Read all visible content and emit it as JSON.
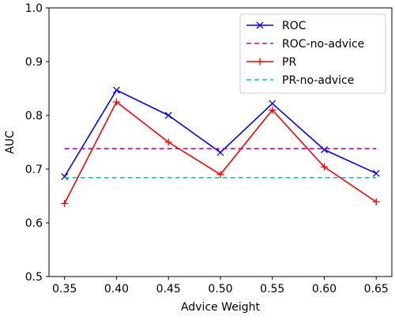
{
  "chart_data": {
    "type": "line",
    "xlabel": "Advice Weight",
    "ylabel": "AUC",
    "xlim": [
      0.335,
      0.665
    ],
    "ylim": [
      0.5,
      1.0
    ],
    "x_ticks": [
      "0.35",
      "0.40",
      "0.45",
      "0.50",
      "0.55",
      "0.60",
      "0.65"
    ],
    "y_ticks": [
      "0.5",
      "0.6",
      "0.7",
      "0.8",
      "0.9",
      "1.0"
    ],
    "x_tick_values": [
      0.35,
      0.4,
      0.45,
      0.5,
      0.55,
      0.6,
      0.65
    ],
    "y_tick_values": [
      0.5,
      0.6,
      0.7,
      0.8,
      0.9,
      1.0
    ],
    "grid": false,
    "legend_position": "top-right",
    "x": [
      0.35,
      0.4,
      0.45,
      0.5,
      0.55,
      0.6,
      0.65
    ],
    "series": [
      {
        "name": "ROC",
        "color": "#0000ff",
        "style": "solid",
        "marker": "x",
        "values": [
          0.686,
          0.847,
          0.8,
          0.731,
          0.822,
          0.736,
          0.692
        ]
      },
      {
        "name": "ROC-no-advice",
        "color": "#bf00bf",
        "style": "dashed",
        "marker": "none",
        "values": [
          0.738,
          0.738,
          0.738,
          0.738,
          0.738,
          0.738,
          0.738
        ]
      },
      {
        "name": "PR",
        "color": "#ff0000",
        "style": "solid",
        "marker": "plus",
        "values": [
          0.636,
          0.825,
          0.75,
          0.69,
          0.81,
          0.704,
          0.639
        ]
      },
      {
        "name": "PR-no-advice",
        "color": "#00bfbf",
        "style": "dashed",
        "marker": "none",
        "values": [
          0.684,
          0.684,
          0.684,
          0.684,
          0.684,
          0.684,
          0.684
        ]
      }
    ]
  }
}
